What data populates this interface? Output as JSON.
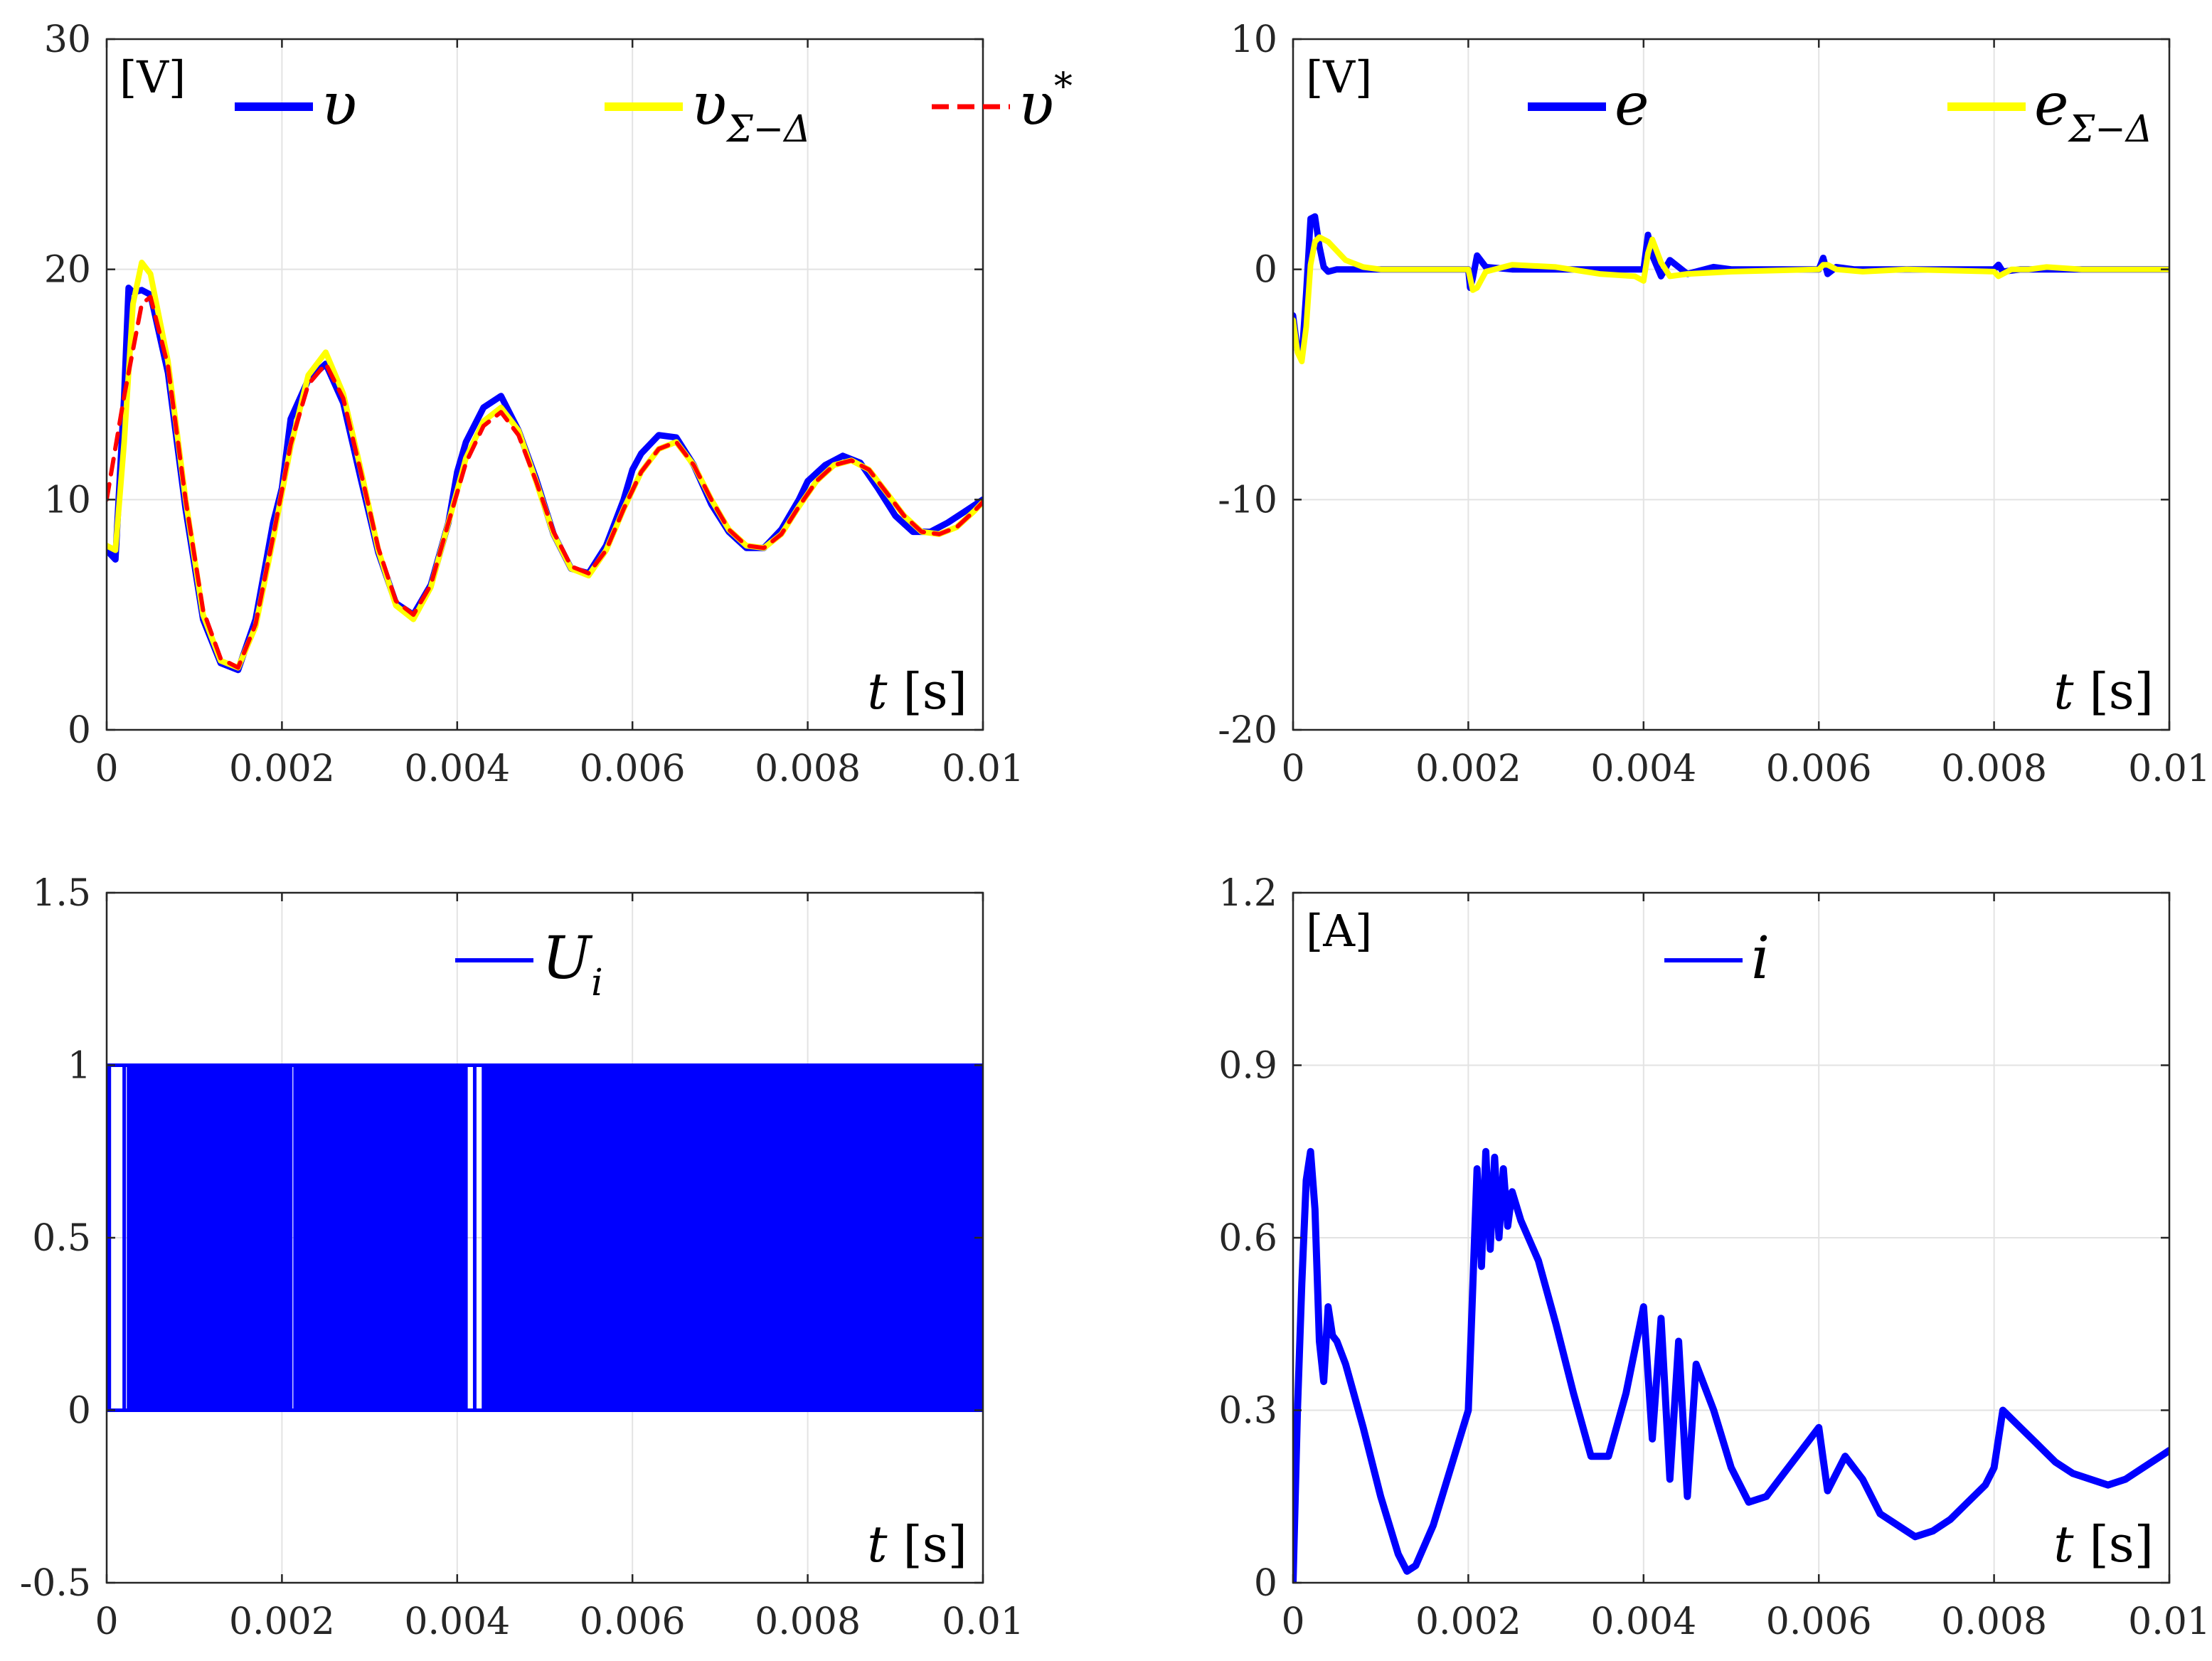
{
  "chart_data": [
    {
      "id": "voltage",
      "type": "line",
      "unit_label": "[V]",
      "xlabel_var": "t",
      "xlabel_unit": "[s]",
      "xlim": [
        0,
        0.01
      ],
      "ylim": [
        0,
        30
      ],
      "xticks": [
        0,
        0.002,
        0.004,
        0.006,
        0.008,
        0.01
      ],
      "xtick_labels": [
        "0",
        "0.002",
        "0.004",
        "0.006",
        "0.008",
        "0.01"
      ],
      "yticks": [
        0,
        10,
        20,
        30
      ],
      "ytick_labels": [
        "0",
        "10",
        "20",
        "30"
      ],
      "legend_position": "top",
      "legend": [
        {
          "symbol": "υ",
          "sub": "",
          "sup": "",
          "color": "#0000ff",
          "style": "solid"
        },
        {
          "symbol": "υ",
          "sub": "Σ−Δ",
          "sup": "",
          "color": "#ffff00",
          "style": "solid"
        },
        {
          "symbol": "υ",
          "sub": "",
          "sup": "*",
          "color": "#ff0000",
          "style": "dashed"
        }
      ],
      "series": [
        {
          "name": "v",
          "color": "#0000ff",
          "style": "solid",
          "x": [
            0,
            0.0001,
            0.0002,
            0.00025,
            0.0003,
            0.0004,
            0.0005,
            0.0007,
            0.0009,
            0.0011,
            0.0013,
            0.0015,
            0.0017,
            0.0019,
            0.002,
            0.0021,
            0.0023,
            0.0025,
            0.0027,
            0.0029,
            0.0031,
            0.0033,
            0.0035,
            0.0037,
            0.0039,
            0.004,
            0.0041,
            0.0043,
            0.0045,
            0.0047,
            0.0049,
            0.0051,
            0.0053,
            0.0055,
            0.0057,
            0.0059,
            0.006,
            0.0061,
            0.0063,
            0.0065,
            0.0067,
            0.0069,
            0.0071,
            0.0073,
            0.0075,
            0.0077,
            0.0079,
            0.008,
            0.0082,
            0.0084,
            0.0086,
            0.0088,
            0.009,
            0.0092,
            0.0094,
            0.0096,
            0.0098,
            0.01
          ],
          "y": [
            7.8,
            7.4,
            14.5,
            19.2,
            19.0,
            19.1,
            18.9,
            15.5,
            9.6,
            4.8,
            2.9,
            2.6,
            4.8,
            9.0,
            10.5,
            13.5,
            15.2,
            15.9,
            14.2,
            10.9,
            7.7,
            5.5,
            5.0,
            6.3,
            9.0,
            11.2,
            12.5,
            14.0,
            14.5,
            13.0,
            10.9,
            8.5,
            7.0,
            6.8,
            8.0,
            10.0,
            11.3,
            12.0,
            12.8,
            12.7,
            11.5,
            9.8,
            8.6,
            7.9,
            7.9,
            8.7,
            10.0,
            10.8,
            11.5,
            11.9,
            11.6,
            10.5,
            9.3,
            8.6,
            8.6,
            9.0,
            9.5,
            10.0
          ]
        },
        {
          "name": "v_sigma_delta",
          "color": "#ffff00",
          "style": "solid",
          "x": [
            0,
            0.0001,
            0.0002,
            0.0003,
            0.0004,
            0.0005,
            0.0007,
            0.0009,
            0.0011,
            0.0013,
            0.0015,
            0.0017,
            0.0019,
            0.0021,
            0.0023,
            0.0025,
            0.0027,
            0.0029,
            0.0031,
            0.0033,
            0.0035,
            0.0037,
            0.0039,
            0.0041,
            0.0043,
            0.0045,
            0.0047,
            0.0049,
            0.0051,
            0.0053,
            0.0055,
            0.0057,
            0.0059,
            0.0061,
            0.0063,
            0.0065,
            0.0067,
            0.0069,
            0.0071,
            0.0073,
            0.0075,
            0.0077,
            0.0079,
            0.0081,
            0.0083,
            0.0085,
            0.0087,
            0.0089,
            0.0091,
            0.0093,
            0.0095,
            0.0097,
            0.0099,
            0.01
          ],
          "y": [
            8.0,
            7.8,
            12.5,
            18.5,
            20.3,
            19.8,
            16.0,
            10.0,
            5.0,
            3.0,
            2.7,
            4.5,
            8.3,
            12.3,
            15.4,
            16.4,
            14.6,
            11.3,
            7.8,
            5.4,
            4.8,
            6.2,
            9.0,
            11.8,
            13.4,
            14.0,
            13.0,
            10.8,
            8.5,
            7.0,
            6.7,
            7.8,
            9.6,
            11.2,
            12.2,
            12.5,
            11.5,
            10.0,
            8.7,
            8.0,
            7.9,
            8.5,
            9.7,
            10.8,
            11.5,
            11.7,
            11.3,
            10.3,
            9.3,
            8.6,
            8.5,
            8.8,
            9.5,
            9.9
          ]
        },
        {
          "name": "v_ref",
          "color": "#ff0000",
          "style": "dashed",
          "x": [
            0,
            0.0002,
            0.0004,
            0.0005,
            0.0007,
            0.0009,
            0.0011,
            0.0013,
            0.0015,
            0.0017,
            0.0019,
            0.0021,
            0.0023,
            0.0025,
            0.0027,
            0.0029,
            0.0031,
            0.0033,
            0.0035,
            0.0037,
            0.0039,
            0.0041,
            0.0043,
            0.0045,
            0.0047,
            0.0049,
            0.0051,
            0.0053,
            0.0055,
            0.0057,
            0.0059,
            0.0061,
            0.0063,
            0.0065,
            0.0067,
            0.0069,
            0.0071,
            0.0073,
            0.0075,
            0.0077,
            0.0079,
            0.0081,
            0.0083,
            0.0085,
            0.0087,
            0.0089,
            0.0091,
            0.0093,
            0.0095,
            0.0097,
            0.0099,
            0.01
          ],
          "y": [
            10.0,
            14.5,
            18.5,
            18.8,
            15.8,
            10.0,
            5.2,
            3.1,
            2.7,
            4.6,
            8.4,
            12.4,
            15.0,
            15.9,
            14.4,
            11.2,
            7.9,
            5.6,
            5.0,
            6.3,
            9.0,
            11.6,
            13.2,
            13.8,
            12.8,
            10.8,
            8.6,
            7.1,
            6.8,
            7.8,
            9.6,
            11.2,
            12.2,
            12.5,
            11.5,
            10.0,
            8.7,
            8.0,
            7.9,
            8.5,
            9.7,
            10.8,
            11.5,
            11.7,
            11.3,
            10.3,
            9.3,
            8.6,
            8.5,
            8.8,
            9.5,
            9.9
          ]
        }
      ]
    },
    {
      "id": "error",
      "type": "line",
      "unit_label": "[V]",
      "xlabel_var": "t",
      "xlabel_unit": "[s]",
      "xlim": [
        0,
        0.01
      ],
      "ylim": [
        -20,
        10
      ],
      "xticks": [
        0,
        0.002,
        0.004,
        0.006,
        0.008,
        0.01
      ],
      "xtick_labels": [
        "0",
        "0.002",
        "0.004",
        "0.006",
        "0.008",
        "0.01"
      ],
      "yticks": [
        -20,
        -10,
        0,
        10
      ],
      "ytick_labels": [
        "-20",
        "-10",
        "0",
        "10"
      ],
      "legend_position": "top",
      "legend": [
        {
          "symbol": "e",
          "sub": "",
          "sup": "",
          "color": "#0000ff",
          "style": "solid"
        },
        {
          "symbol": "e",
          "sub": "Σ−Δ",
          "sup": "",
          "color": "#ffff00",
          "style": "solid"
        }
      ],
      "series": [
        {
          "name": "e",
          "color": "#0000ff",
          "style": "solid",
          "x": [
            0,
            5e-05,
            0.0001,
            0.00015,
            0.0002,
            0.00025,
            0.0003,
            0.00035,
            0.0004,
            0.0005,
            0.001,
            0.002,
            0.00202,
            0.00205,
            0.0021,
            0.0022,
            0.0025,
            0.004,
            0.00402,
            0.00405,
            0.0041,
            0.0042,
            0.0043,
            0.0045,
            0.0048,
            0.005,
            0.006,
            0.00605,
            0.0061,
            0.0062,
            0.0064,
            0.008,
            0.00805,
            0.0081,
            0.0083,
            0.01
          ],
          "y": [
            -2.0,
            -3.5,
            -3.8,
            -1.0,
            2.2,
            2.3,
            1.0,
            0.1,
            -0.1,
            0.0,
            0.0,
            0.0,
            -0.8,
            -0.4,
            0.6,
            0.1,
            0.0,
            0.0,
            0.6,
            1.5,
            0.6,
            -0.3,
            0.4,
            -0.2,
            0.1,
            0.0,
            0.0,
            0.5,
            -0.2,
            0.1,
            0.0,
            0.0,
            0.2,
            -0.1,
            0.0,
            0.0
          ]
        },
        {
          "name": "e_sigma_delta",
          "color": "#ffff00",
          "style": "solid",
          "x": [
            0,
            5e-05,
            0.0001,
            0.00015,
            0.0002,
            0.00025,
            0.0003,
            0.0004,
            0.0006,
            0.0008,
            0.001,
            0.002,
            0.00205,
            0.0021,
            0.0022,
            0.0025,
            0.003,
            0.0035,
            0.0039,
            0.004,
            0.00405,
            0.0041,
            0.0042,
            0.0043,
            0.0045,
            0.005,
            0.006,
            0.00605,
            0.0061,
            0.0062,
            0.0065,
            0.007,
            0.008,
            0.00805,
            0.0081,
            0.0082,
            0.0084,
            0.0086,
            0.009,
            0.01
          ],
          "y": [
            -2.2,
            -3.6,
            -4.0,
            -2.5,
            0.2,
            1.2,
            1.4,
            1.2,
            0.4,
            0.1,
            0.0,
            0.0,
            -0.9,
            -0.8,
            -0.1,
            0.2,
            0.1,
            -0.2,
            -0.3,
            -0.5,
            0.7,
            1.3,
            0.3,
            -0.3,
            -0.2,
            -0.1,
            0.0,
            0.2,
            0.2,
            0.0,
            -0.1,
            0.0,
            -0.1,
            -0.3,
            -0.2,
            0.0,
            0.0,
            0.1,
            0.0,
            0.0
          ]
        }
      ]
    },
    {
      "id": "switching",
      "type": "line",
      "unit_label": "",
      "xlabel_var": "t",
      "xlabel_unit": "[s]",
      "xlim": [
        0,
        0.01
      ],
      "ylim": [
        -0.5,
        1.5
      ],
      "xticks": [
        0,
        0.002,
        0.004,
        0.006,
        0.008,
        0.01
      ],
      "xtick_labels": [
        "0",
        "0.002",
        "0.004",
        "0.006",
        "0.008",
        "0.01"
      ],
      "yticks": [
        -0.5,
        0,
        0.5,
        1,
        1.5
      ],
      "ytick_labels": [
        "-0.5",
        "0",
        "0.5",
        "1",
        "1.5"
      ],
      "legend_position": "top",
      "legend": [
        {
          "symbol": "U",
          "sub": "i",
          "sup": "",
          "color": "#0000ff",
          "style": "solid"
        }
      ],
      "series": [
        {
          "name": "U_i",
          "color": "#0000ff",
          "style": "square-wave",
          "low": 0,
          "high": 1,
          "solid_intervals": [
            [
              0.00025,
              0.0021
            ],
            [
              0.00215,
              0.0041
            ],
            [
              0.0043,
              0.01
            ]
          ],
          "edges": [
            0,
            3e-05,
            0.0002,
            0.00025,
            0.0021,
            0.00215,
            0.0041,
            0.0042,
            0.0043,
            0.0044,
            0.0045
          ]
        }
      ]
    },
    {
      "id": "current",
      "type": "line",
      "unit_label": "[A]",
      "xlabel_var": "t",
      "xlabel_unit": "[s]",
      "xlim": [
        0,
        0.01
      ],
      "ylim": [
        0,
        1.2
      ],
      "xticks": [
        0,
        0.002,
        0.004,
        0.006,
        0.008,
        0.01
      ],
      "xtick_labels": [
        "0",
        "0.002",
        "0.004",
        "0.006",
        "0.008",
        "0.01"
      ],
      "yticks": [
        0,
        0.3,
        0.6,
        0.9,
        1.2
      ],
      "ytick_labels": [
        "0",
        "0.3",
        "0.6",
        "0.9",
        "1.2"
      ],
      "legend_position": "top",
      "legend": [
        {
          "symbol": "i",
          "sub": "",
          "sup": "",
          "color": "#0000ff",
          "style": "solid"
        }
      ],
      "series": [
        {
          "name": "i",
          "color": "#0000ff",
          "style": "solid",
          "x": [
            0,
            5e-05,
            0.0001,
            0.00015,
            0.0002,
            0.00025,
            0.0003,
            0.00035,
            0.0004,
            0.00045,
            0.0005,
            0.0006,
            0.0008,
            0.001,
            0.0012,
            0.0013,
            0.0014,
            0.0016,
            0.0018,
            0.002,
            0.0021,
            0.00215,
            0.0022,
            0.00225,
            0.0023,
            0.00235,
            0.0024,
            0.00245,
            0.0025,
            0.0026,
            0.0028,
            0.003,
            0.0032,
            0.0034,
            0.0036,
            0.0038,
            0.004,
            0.0041,
            0.0042,
            0.0043,
            0.0044,
            0.0045,
            0.0046,
            0.0048,
            0.005,
            0.0052,
            0.0054,
            0.0056,
            0.0058,
            0.006,
            0.0061,
            0.0063,
            0.0065,
            0.0067,
            0.0069,
            0.0071,
            0.0073,
            0.0075,
            0.0077,
            0.0079,
            0.008,
            0.0081,
            0.0083,
            0.0085,
            0.0087,
            0.0089,
            0.0091,
            0.0093,
            0.0095,
            0.0097,
            0.0099,
            0.01
          ],
          "y": [
            0.0,
            0.3,
            0.52,
            0.7,
            0.75,
            0.65,
            0.42,
            0.35,
            0.48,
            0.43,
            0.42,
            0.38,
            0.27,
            0.15,
            0.05,
            0.02,
            0.03,
            0.1,
            0.2,
            0.3,
            0.72,
            0.55,
            0.75,
            0.58,
            0.74,
            0.6,
            0.72,
            0.62,
            0.68,
            0.63,
            0.56,
            0.45,
            0.33,
            0.22,
            0.22,
            0.33,
            0.48,
            0.25,
            0.46,
            0.18,
            0.42,
            0.15,
            0.38,
            0.3,
            0.2,
            0.14,
            0.15,
            0.19,
            0.23,
            0.27,
            0.16,
            0.22,
            0.18,
            0.12,
            0.1,
            0.08,
            0.09,
            0.11,
            0.14,
            0.17,
            0.2,
            0.3,
            0.27,
            0.24,
            0.21,
            0.19,
            0.18,
            0.17,
            0.18,
            0.2,
            0.22,
            0.23
          ]
        }
      ]
    }
  ]
}
